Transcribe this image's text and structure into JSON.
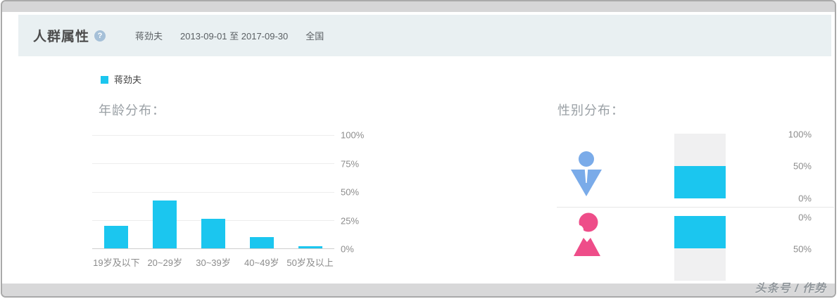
{
  "header": {
    "title": "人群属性",
    "help": "?",
    "keyword": "蒋劲夫",
    "date_range": "2013-09-01 至 2017-09-30",
    "region": "全国"
  },
  "legend": {
    "label": "蒋劲夫"
  },
  "watermark": "头条号 / 作势",
  "colors": {
    "accent": "#1bc6ef",
    "bar_track": "#f0f0f1",
    "male_icon": "#7aabe9",
    "female_icon": "#ee4d89",
    "header_bg": "#e9f0f2"
  },
  "chart_data": [
    {
      "type": "bar",
      "name": "age-distribution",
      "title": "年龄分布：",
      "categories": [
        "19岁及以下",
        "20~29岁",
        "30~39岁",
        "40~49岁",
        "50岁及以上"
      ],
      "values": [
        20,
        42,
        26,
        10,
        2
      ],
      "unit": "%",
      "ylim": [
        0,
        100
      ],
      "yticks": [
        "100%",
        "75%",
        "50%",
        "25%",
        "0%"
      ],
      "grid": true,
      "legend_entries": [
        "蒋劲夫"
      ],
      "legend_position": "top-left",
      "bar_color": "#1bc6ef"
    },
    {
      "type": "bar",
      "name": "gender-distribution",
      "title": "性别分布：",
      "categories": [
        "男",
        "女"
      ],
      "values": [
        50,
        50
      ],
      "unit": "%",
      "ylim": [
        0,
        100
      ],
      "male_yticks": [
        "100%",
        "50%",
        "0%"
      ],
      "female_yticks": [
        "0%",
        "50%"
      ],
      "bar_color": "#1bc6ef"
    }
  ]
}
